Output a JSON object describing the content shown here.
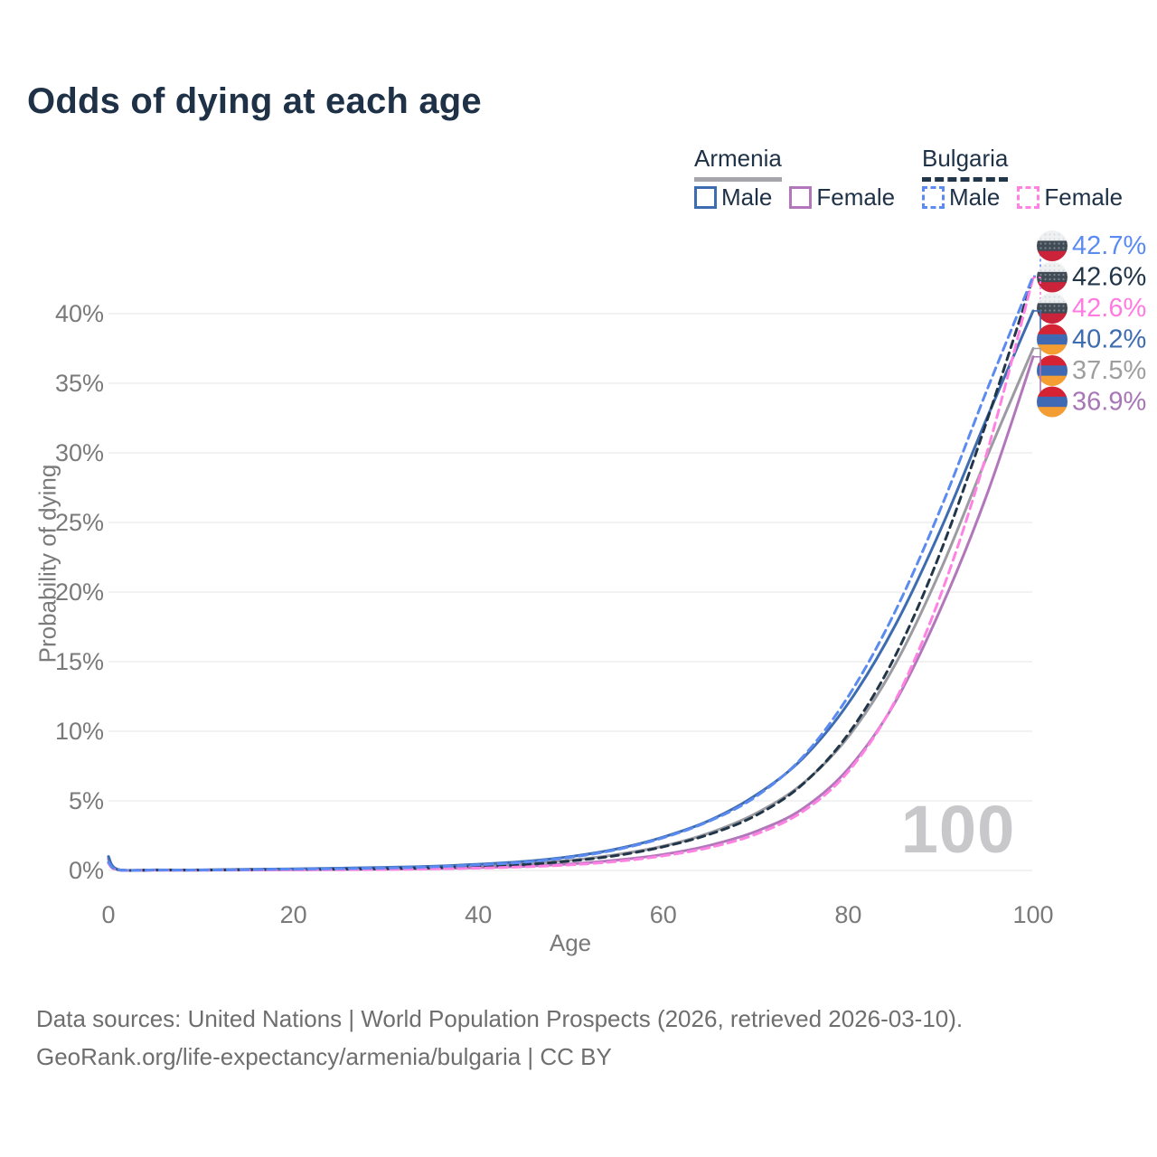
{
  "header": {
    "title": "Odds of dying at each age"
  },
  "legend": {
    "groups": [
      {
        "country": "Armenia",
        "line_style": "solid",
        "underline_color": "#a5a5ab",
        "items": [
          {
            "label": "Male",
            "color": "#3e6cb0"
          },
          {
            "label": "Female",
            "color": "#b277bb"
          }
        ]
      },
      {
        "country": "Bulgaria",
        "line_style": "dashed",
        "underline_color": "#22364a",
        "items": [
          {
            "label": "Male",
            "color": "#5b8bf0"
          },
          {
            "label": "Female",
            "color": "#ff82e3"
          }
        ]
      }
    ]
  },
  "watermark": "100",
  "footer": {
    "line1": "Data sources: United Nations | World Population Prospects (2026, retrieved 2026-03-10).",
    "line2": "GeoRank.org/life-expectancy/armenia/bulgaria | CC BY"
  },
  "chart_data": {
    "type": "line",
    "title": "Odds of dying at each age",
    "xlabel": "Age",
    "ylabel": "Probability of dying",
    "xlim": [
      0,
      100
    ],
    "ylim_percent": [
      0,
      44
    ],
    "x_ticks": [
      0,
      20,
      40,
      60,
      80,
      100
    ],
    "y_ticks_percent": [
      0,
      5,
      10,
      15,
      20,
      25,
      30,
      35,
      40
    ],
    "grid": true,
    "legend_position": "top-right",
    "x": [
      0,
      1,
      5,
      10,
      15,
      20,
      25,
      30,
      35,
      40,
      45,
      50,
      55,
      60,
      65,
      70,
      75,
      80,
      85,
      90,
      95,
      100
    ],
    "series": [
      {
        "key": "armenia_total",
        "name": "Armenia (both sexes)",
        "color": "#9b9ba1",
        "dash": null,
        "width": 3,
        "values_percent": [
          0.9,
          0.07,
          0.035,
          0.035,
          0.06,
          0.08,
          0.11,
          0.15,
          0.21,
          0.32,
          0.47,
          0.73,
          1.15,
          1.75,
          2.7,
          4.1,
          6.2,
          9.6,
          14.7,
          21.6,
          29.7,
          37.5
        ]
      },
      {
        "key": "armenia_female",
        "name": "Armenia Female",
        "color": "#b277bb",
        "dash": null,
        "width": 3,
        "values_percent": [
          0.8,
          0.06,
          0.03,
          0.03,
          0.04,
          0.05,
          0.07,
          0.09,
          0.13,
          0.2,
          0.3,
          0.47,
          0.75,
          1.15,
          1.8,
          2.8,
          4.4,
          7.3,
          12.0,
          18.8,
          27.0,
          36.9
        ]
      },
      {
        "key": "armenia_male",
        "name": "Armenia Male",
        "color": "#3e6cb0",
        "dash": null,
        "width": 3,
        "values_percent": [
          1.0,
          0.08,
          0.04,
          0.04,
          0.08,
          0.12,
          0.16,
          0.22,
          0.3,
          0.45,
          0.65,
          1.0,
          1.55,
          2.4,
          3.6,
          5.4,
          8.0,
          12.0,
          17.5,
          24.5,
          32.5,
          40.2
        ]
      },
      {
        "key": "bulgaria_total",
        "name": "Bulgaria (both sexes)",
        "color": "#22364a",
        "dash": "8 6",
        "width": 3,
        "values_percent": [
          0.55,
          0.045,
          0.025,
          0.025,
          0.05,
          0.07,
          0.09,
          0.13,
          0.19,
          0.29,
          0.43,
          0.68,
          1.08,
          1.7,
          2.6,
          3.95,
          6.15,
          9.8,
          15.3,
          22.9,
          32.3,
          42.6
        ]
      },
      {
        "key": "bulgaria_female",
        "name": "Bulgaria Female",
        "color": "#ff82e3",
        "dash": "9 6",
        "width": 3,
        "values_percent": [
          0.5,
          0.04,
          0.02,
          0.02,
          0.03,
          0.04,
          0.05,
          0.07,
          0.11,
          0.17,
          0.26,
          0.4,
          0.65,
          1.05,
          1.65,
          2.6,
          4.2,
          7.1,
          12.1,
          19.8,
          30.0,
          42.6
        ]
      },
      {
        "key": "bulgaria_male",
        "name": "Bulgaria Male",
        "color": "#5b8bf0",
        "dash": "9 6",
        "width": 3,
        "values_percent": [
          0.6,
          0.05,
          0.03,
          0.03,
          0.06,
          0.1,
          0.13,
          0.18,
          0.26,
          0.4,
          0.6,
          0.95,
          1.5,
          2.35,
          3.55,
          5.3,
          8.1,
          12.5,
          18.5,
          26.0,
          34.5,
          42.7
        ]
      }
    ],
    "end_labels": [
      {
        "text": "42.7%",
        "color": "#5b8bf0",
        "flag": "bulgaria",
        "series": "bulgaria_male"
      },
      {
        "text": "42.6%",
        "color": "#22364a",
        "flag": "bulgaria",
        "series": "bulgaria_total"
      },
      {
        "text": "42.6%",
        "color": "#ff7ae1",
        "flag": "bulgaria",
        "series": "bulgaria_female"
      },
      {
        "text": "40.2%",
        "color": "#3e6cb0",
        "flag": "armenia",
        "series": "armenia_male"
      },
      {
        "text": "37.5%",
        "color": "#9e9e9e",
        "flag": "armenia",
        "series": "armenia_total"
      },
      {
        "text": "36.9%",
        "color": "#a876b6",
        "flag": "armenia",
        "series": "armenia_female"
      }
    ],
    "flag_colors": {
      "armenia": [
        "#d62334",
        "#3f6ab3",
        "#f49d33"
      ],
      "bulgaria": [
        "#eef0f2",
        "#414b55",
        "#cb2339"
      ]
    },
    "hover_age_indicator": "100"
  }
}
